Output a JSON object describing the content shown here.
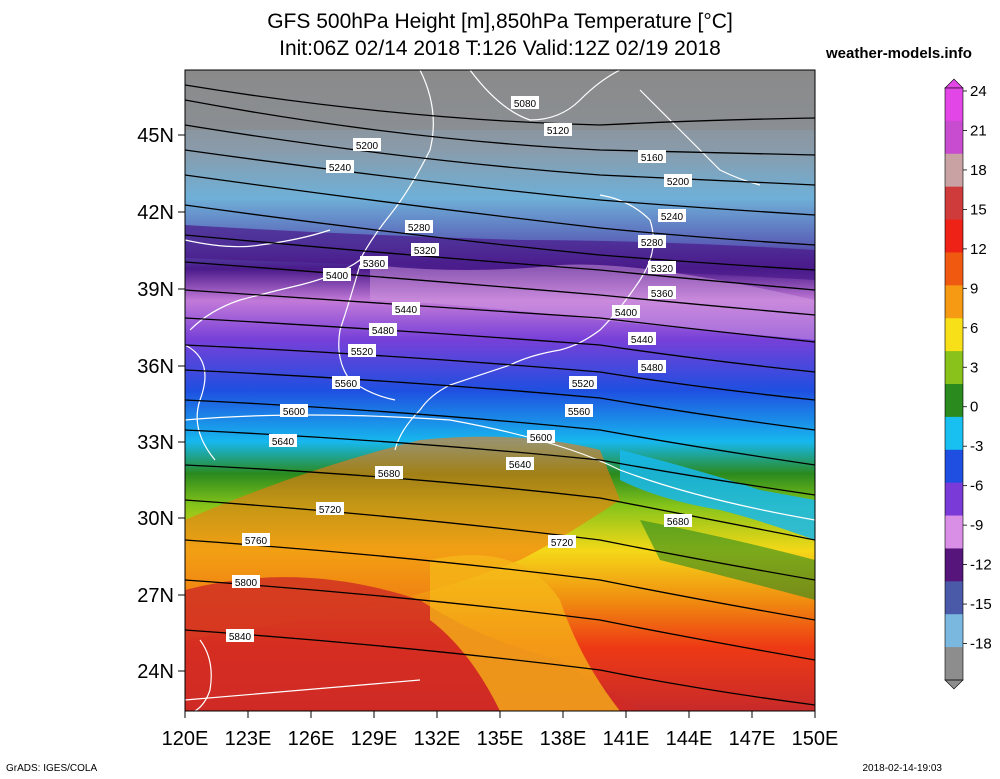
{
  "title_line1": "GFS 500hPa Height [m],850hPa Temperature [°C]",
  "title_line2": "Init:06Z 02/14 2018 T:126 Valid:12Z 02/19 2018",
  "site": "weather-models.info",
  "credit": "GrADS: IGES/COLA",
  "timestamp": "2018-02-14-19:03",
  "map": {
    "lat_labels": [
      "45N",
      "42N",
      "39N",
      "36N",
      "33N",
      "30N",
      "27N",
      "24N"
    ],
    "lon_labels": [
      "120E",
      "123E",
      "126E",
      "129E",
      "132E",
      "135E",
      "138E",
      "141E",
      "144E",
      "147E",
      "150E"
    ],
    "contour_labels": [
      "5080",
      "5120",
      "5160",
      "5200",
      "5200",
      "5240",
      "5240",
      "5280",
      "5280",
      "5320",
      "5320",
      "5360",
      "5360",
      "5400",
      "5400",
      "5440",
      "5440",
      "5480",
      "5480",
      "5520",
      "5520",
      "5560",
      "5560",
      "5600",
      "5600",
      "5640",
      "5640",
      "5680",
      "5680",
      "5720",
      "5720",
      "5760",
      "5800",
      "5840"
    ]
  },
  "colorbar": {
    "labels": [
      "24",
      "21",
      "18",
      "15",
      "12",
      "9",
      "6",
      "3",
      "0",
      "-3",
      "-6",
      "-9",
      "-12",
      "-15",
      "-18"
    ],
    "colors": [
      "#e246e6",
      "#c84ccf",
      "#c9a3a3",
      "#cf3b3b",
      "#ee2216",
      "#f05a10",
      "#f59a12",
      "#f7e018",
      "#88c21a",
      "#2a8a1e",
      "#17c0f0",
      "#1f4fe0",
      "#7a3ad8",
      "#d98fe6",
      "#55157a",
      "#4a5aa8",
      "#7ab8e0",
      "#8d8d8d"
    ]
  }
}
